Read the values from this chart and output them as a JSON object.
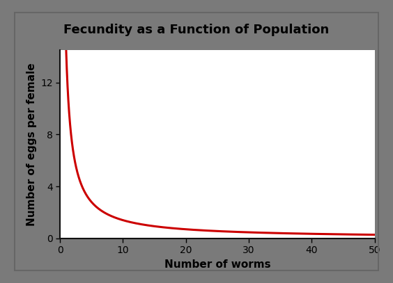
{
  "title": "Fecundity as a Function of Population",
  "xlabel": "Number of worms",
  "ylabel": "Number of eggs per female",
  "title_bg_color": "#b5bc8a",
  "outer_border_color": "#666666",
  "line_color": "#cc0000",
  "line_width": 2.2,
  "xlim": [
    0,
    50
  ],
  "ylim": [
    0,
    14.5
  ],
  "xticks": [
    0,
    10,
    20,
    30,
    40,
    50
  ],
  "yticks": [
    0,
    4,
    8,
    12
  ],
  "curve_k": 14.0,
  "curve_start": 0.3,
  "x_end": 50,
  "axis_spine_color": "#111111",
  "title_fontsize": 13,
  "label_fontsize": 11,
  "tick_fontsize": 10,
  "fig_bg_color": "#ffffff",
  "outer_bg_color": "#7a7a7a"
}
